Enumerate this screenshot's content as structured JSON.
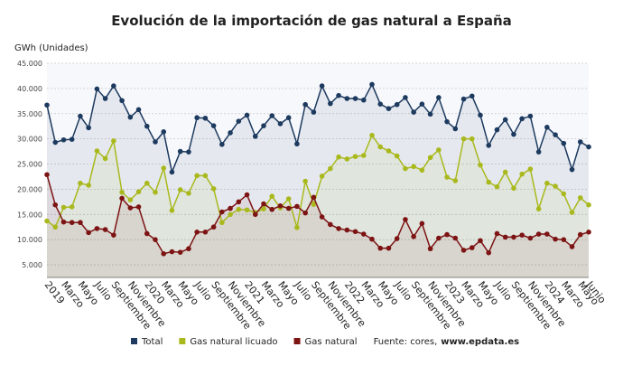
{
  "chart_data": {
    "type": "line",
    "title": "Evolución de la importación de gas natural a España",
    "y_label": "GWh (Unidades)",
    "source": "Fuente: cores,",
    "source_site": "www.epdata.es",
    "categories": [
      "2019",
      null,
      "Marzo",
      null,
      "Mayo",
      null,
      "Julio",
      null,
      "Septiembre",
      null,
      "Noviembre",
      null,
      "2020",
      null,
      "Marzo",
      null,
      "Mayo",
      null,
      "Julio",
      null,
      "Septiembre",
      null,
      "Noviembre",
      null,
      "2021",
      null,
      "Marzo",
      null,
      "Mayo",
      null,
      "Julio",
      null,
      "Septiembre",
      null,
      "Noviembre",
      null,
      "2022",
      null,
      "Marzo",
      null,
      "Mayo",
      null,
      "Julio",
      null,
      "Septiembre",
      null,
      "Noviembre",
      null,
      "2023",
      null,
      "Marzo",
      null,
      "Mayo",
      null,
      "Julio",
      null,
      "Septiembre",
      null,
      "Noviembre",
      null,
      "2024",
      null,
      "Marzo",
      null,
      "Mayo",
      "Junio"
    ],
    "series": [
      {
        "name": "Total",
        "color": "#1d3a5f",
        "values": [
          36700,
          29300,
          29800,
          29900,
          34500,
          32200,
          39900,
          38000,
          40500,
          37600,
          34300,
          35800,
          32500,
          29400,
          31400,
          23400,
          27500,
          27400,
          34200,
          34100,
          32600,
          28900,
          31200,
          33500,
          34700,
          30500,
          32600,
          34600,
          33000,
          34200,
          29000,
          36800,
          35300,
          40500,
          37000,
          38600,
          38000,
          38000,
          37700,
          40800,
          36900,
          36000,
          36800,
          38200,
          35300,
          36900,
          34900,
          38200,
          33400,
          32000,
          37900,
          38500,
          34700,
          28700,
          31800,
          33800,
          30900,
          34000,
          34500,
          27400,
          32300,
          30800,
          29100,
          23900,
          29400,
          28400
        ]
      },
      {
        "name": "Gas natural licuado",
        "color": "#a9b91d",
        "values": [
          13700,
          12500,
          16400,
          16500,
          21200,
          20800,
          27600,
          26100,
          29600,
          19400,
          17900,
          19500,
          21200,
          19400,
          24200,
          15800,
          19900,
          19200,
          22700,
          22700,
          20100,
          13400,
          15000,
          16000,
          15900,
          15400,
          16100,
          18600,
          16300,
          18100,
          12400,
          21600,
          17000,
          22600,
          24100,
          26400,
          26000,
          26500,
          26700,
          30700,
          28400,
          27600,
          26600,
          24100,
          24500,
          23800,
          26300,
          27800,
          22400,
          21700,
          30000,
          30000,
          24800,
          21400,
          20500,
          23400,
          20200,
          23000,
          24000,
          16100,
          21200,
          20600,
          19100,
          15400,
          18300,
          16900
        ]
      },
      {
        "name": "Gas natural",
        "color": "#7d1414",
        "values": [
          22900,
          16900,
          13500,
          13400,
          13400,
          11400,
          12200,
          12000,
          10900,
          18200,
          16300,
          16500,
          11200,
          10000,
          7200,
          7600,
          7500,
          8200,
          11500,
          11500,
          12500,
          15500,
          16200,
          17500,
          18900,
          15000,
          17100,
          16000,
          16700,
          16200,
          16600,
          15300,
          18400,
          14500,
          13000,
          12200,
          11900,
          11600,
          11100,
          10100,
          8300,
          8300,
          10200,
          14000,
          10600,
          13200,
          8200,
          10300,
          11000,
          10300,
          7900,
          8400,
          9800,
          7400,
          11200,
          10500,
          10500,
          10900,
          10300,
          11100,
          11100,
          10100,
          10000,
          8600,
          11000,
          11500
        ]
      }
    ],
    "ylim": [
      2500,
      45000
    ],
    "yticks": [
      {
        "value": 5000,
        "label": "5.000"
      },
      {
        "value": 10000,
        "label": "10.000"
      },
      {
        "value": 15000,
        "label": "15.000"
      },
      {
        "value": 20000,
        "label": "20.000"
      },
      {
        "value": 25000,
        "label": "25.000"
      },
      {
        "value": 30000,
        "label": "30.000"
      },
      {
        "value": 35000,
        "label": "35.000"
      },
      {
        "value": 40000,
        "label": "40.000"
      },
      {
        "value": 45000,
        "label": "45.000"
      }
    ],
    "grid": true,
    "area_fill": true,
    "legend": "bottom"
  }
}
